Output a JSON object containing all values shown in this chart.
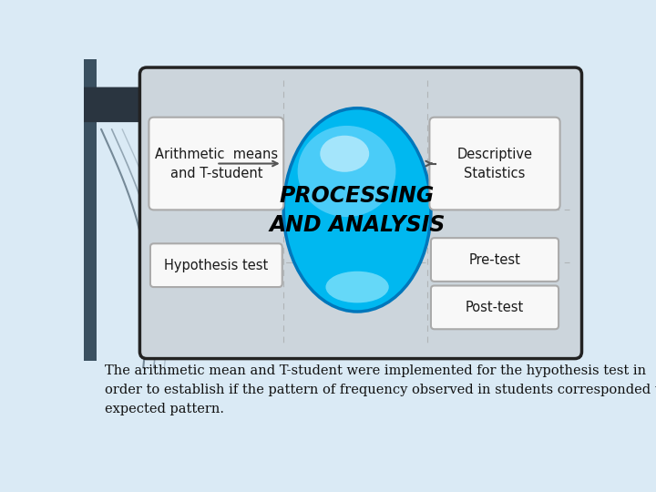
{
  "slide_bg_top": "#c5d8e8",
  "slide_bg_bottom": "#daeaf5",
  "main_box_bg": "#ccd5dc",
  "main_box_border": "#222222",
  "white_box_bg": "#f8f8f8",
  "white_box_border": "#aaaaaa",
  "ellipse_blue": "#00b8f0",
  "ellipse_blue_dark": "#0077bb",
  "ellipse_blue_light": "#88ddff",
  "text_processing_line1": "PROCESSING",
  "text_processing_line2": "AND ANALYSIS",
  "text_arithmetic": "Arithmetic  means\nand T-student",
  "text_hypothesis": "Hypothesis test",
  "text_descriptive": "Descriptive\nStatistics",
  "text_pretest": "Pre-test",
  "text_posttest": "Post-test",
  "caption": "The arithmetic mean and T-student were implemented for the hypothesis test in\norder to establish if the pattern of frequency observed in students corresponded to\nexpected pattern.",
  "arrow_color": "#555555",
  "dashed_line_color": "#999999",
  "left_bar_color": "#3a5060",
  "dark_arrow_color": "#2a3540",
  "curve_color": "#4a6070"
}
